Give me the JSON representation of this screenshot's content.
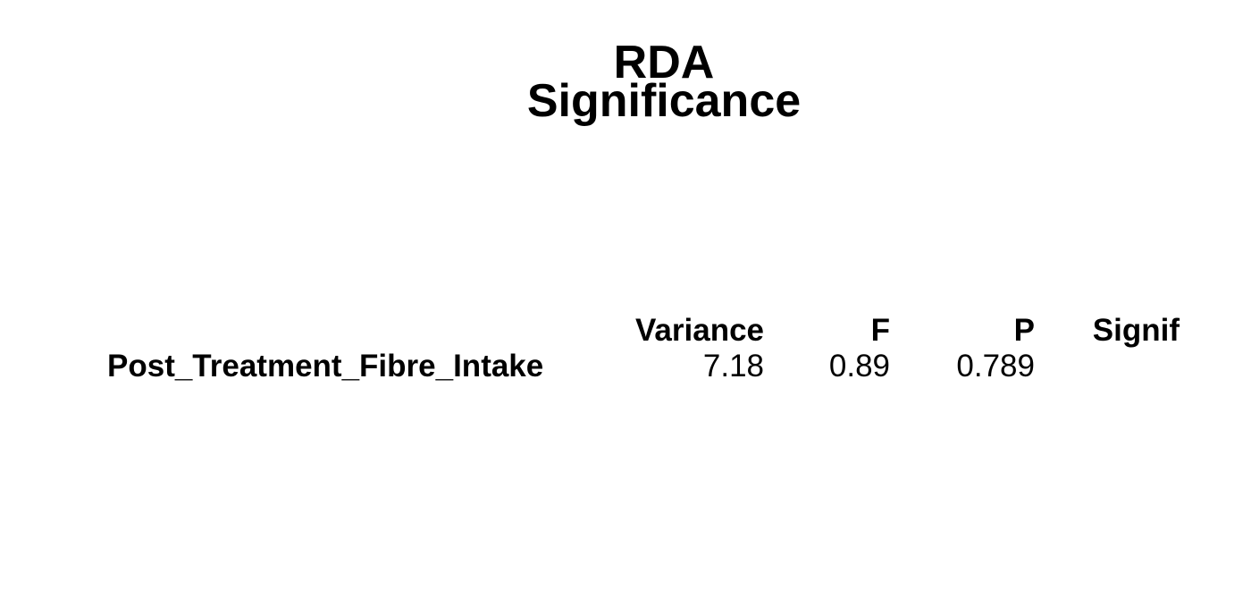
{
  "chart_data": {
    "type": "table",
    "title": [
      "RDA",
      "Significance"
    ],
    "columns": [
      "Variance",
      "F",
      "P",
      "Signif"
    ],
    "rows": [
      {
        "label": "Post_Treatment_Fibre_Intake",
        "values": [
          "7.18",
          "0.89",
          "0.789",
          ""
        ]
      }
    ]
  }
}
